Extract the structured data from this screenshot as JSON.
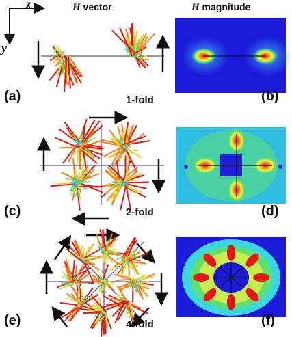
{
  "axes": {
    "z": "z",
    "y": "y"
  },
  "header": {
    "left_symbol": "H",
    "left_rest": " vector",
    "right_symbol": "H",
    "right_rest": " magnitude"
  },
  "panels": {
    "a": "(a)",
    "b": "(b)",
    "c": "(c)",
    "d": "(d)",
    "e": "(e)",
    "f": "(f)"
  },
  "folds": {
    "one": "1-fold",
    "two": "2-fold",
    "four": "4-fold"
  },
  "colors": {
    "field_bg": "#1a1ad8",
    "low": "#3a8cff",
    "mid_cyan": "#38e0e0",
    "green": "#5ee05e",
    "yellow": "#f5f040",
    "high": "#e01818"
  }
}
